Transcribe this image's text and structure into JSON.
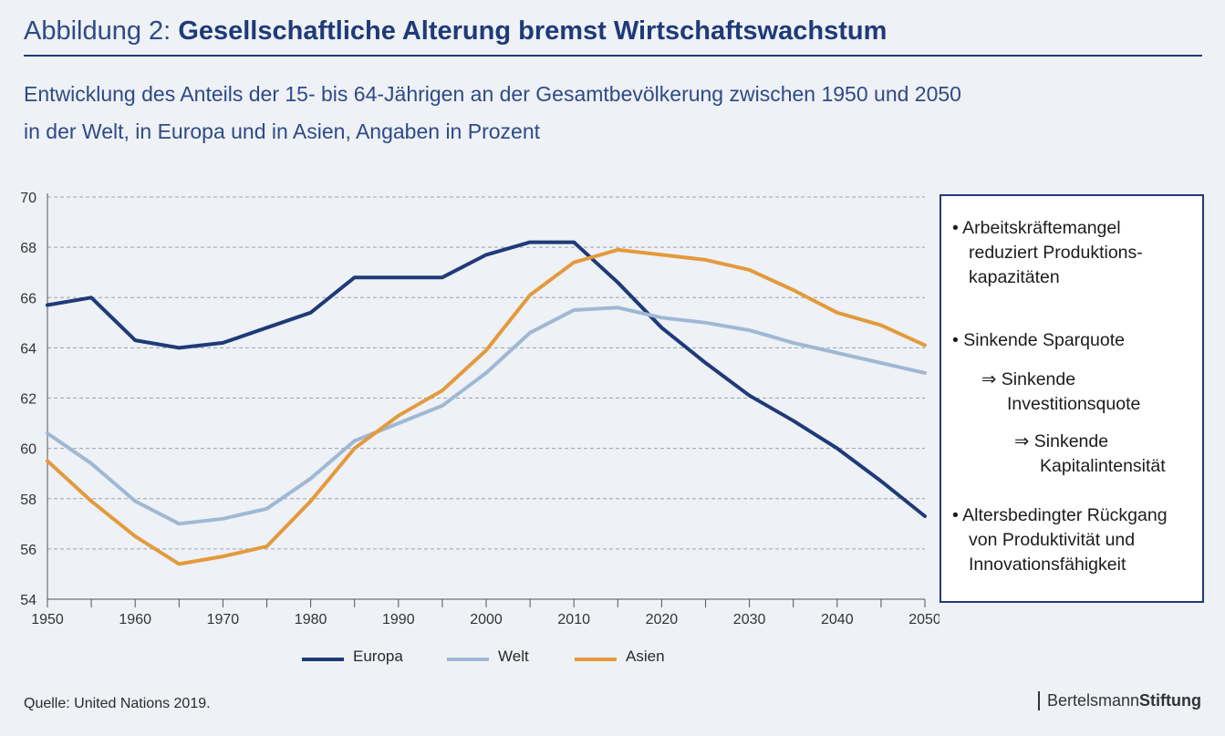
{
  "header": {
    "title_prefix": "Abbildung 2:",
    "title_main": "Gesellschaftliche Alterung bremst Wirtschaftswachstum",
    "subtitle_line1": "Entwicklung des Anteils der 15- bis 64-Jährigen an der Gesamtbevölkerung zwischen 1950 und 2050",
    "subtitle_line2": "in der Welt, in Europa und in Asien, Angaben in Prozent"
  },
  "chart_data": {
    "type": "line",
    "x": [
      1950,
      1955,
      1960,
      1965,
      1970,
      1975,
      1980,
      1985,
      1990,
      1995,
      2000,
      2005,
      2010,
      2015,
      2020,
      2025,
      2030,
      2035,
      2040,
      2045,
      2050
    ],
    "ylim": [
      54,
      70
    ],
    "xlim": [
      1950,
      2050
    ],
    "yticks": [
      "54",
      "56",
      "58",
      "60",
      "62",
      "64",
      "66",
      "68",
      "70"
    ],
    "xticks": [
      "1950",
      "1960",
      "1970",
      "1980",
      "1990",
      "2000",
      "2010",
      "2020",
      "2030",
      "2040",
      "2050"
    ],
    "grid": "horizontal dashed",
    "legend_position": "bottom",
    "series": [
      {
        "name": "Europa",
        "color": "#1f3a78",
        "values": [
          65.7,
          66.0,
          64.3,
          64.0,
          64.2,
          64.8,
          65.4,
          66.8,
          66.8,
          66.8,
          67.7,
          68.2,
          68.2,
          66.6,
          64.8,
          63.4,
          62.1,
          61.1,
          60.0,
          58.7,
          57.3
        ]
      },
      {
        "name": "Welt",
        "color": "#9fb8d4",
        "values": [
          60.6,
          59.4,
          57.9,
          57.0,
          57.2,
          57.6,
          58.8,
          60.3,
          61.0,
          61.7,
          63.0,
          64.6,
          65.5,
          65.6,
          65.2,
          65.0,
          64.7,
          64.2,
          63.8,
          63.4,
          63.0
        ]
      },
      {
        "name": "Asien",
        "color": "#e39a3c",
        "values": [
          59.5,
          57.9,
          56.5,
          55.4,
          55.7,
          56.1,
          57.9,
          60.0,
          61.3,
          62.3,
          63.9,
          66.1,
          67.4,
          67.9,
          67.7,
          67.5,
          67.1,
          66.3,
          65.4,
          64.9,
          64.1
        ]
      }
    ]
  },
  "infobox": {
    "b1_line1": "• Arbeitskräftemangel",
    "b1_line2": "reduziert Produktions-",
    "b1_line3": "kapazitäten",
    "b2_line1": "• Sinkende Sparquote",
    "b2a_line1": "⇒ Sinkende",
    "b2a_line2": "Investitionsquote",
    "b2b_line1": "⇒ Sinkende",
    "b2b_line2": "Kapitalintensität",
    "b3_line1": "• Altersbedingter Rückgang",
    "b3_line2": "von Produktivität und",
    "b3_line3": "Innovationsfähigkeit"
  },
  "footer": {
    "source": "Quelle: United Nations 2019.",
    "logo_regular": "Bertelsmann",
    "logo_bold": "Stiftung"
  }
}
